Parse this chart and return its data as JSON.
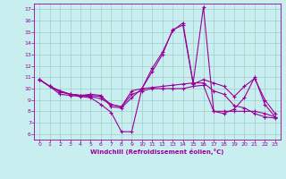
{
  "xlabel": "Windchill (Refroidissement éolien,°C)",
  "bg_color": "#c8eef0",
  "line_color": "#990099",
  "grid_color": "#a0ccc8",
  "ylim": [
    5.5,
    17.5
  ],
  "xlim": [
    -0.5,
    23.5
  ],
  "yticks": [
    6,
    7,
    8,
    9,
    10,
    11,
    12,
    13,
    14,
    15,
    16,
    17
  ],
  "xticks": [
    0,
    1,
    2,
    3,
    4,
    5,
    6,
    7,
    8,
    9,
    10,
    11,
    12,
    13,
    14,
    15,
    16,
    17,
    18,
    19,
    20,
    21,
    22,
    23
  ],
  "series": [
    [
      10.8,
      10.2,
      9.5,
      9.4,
      9.3,
      9.2,
      8.6,
      7.9,
      6.2,
      6.2,
      10.0,
      11.8,
      13.2,
      15.1,
      15.8,
      10.5,
      17.2,
      8.0,
      7.8,
      8.2,
      9.2,
      11.0,
      8.6,
      7.5
    ],
    [
      10.8,
      10.2,
      9.7,
      9.5,
      9.4,
      9.5,
      9.4,
      8.4,
      8.3,
      9.2,
      10.0,
      11.5,
      13.0,
      15.2,
      15.6,
      10.4,
      10.8,
      10.5,
      10.2,
      9.3,
      10.2,
      10.9,
      9.0,
      7.8
    ],
    [
      10.8,
      10.2,
      9.8,
      9.5,
      9.4,
      9.4,
      9.3,
      8.6,
      8.4,
      9.8,
      10.0,
      10.1,
      10.2,
      10.3,
      10.4,
      10.5,
      10.5,
      9.8,
      9.5,
      8.5,
      8.3,
      7.8,
      7.5,
      7.4
    ],
    [
      10.8,
      10.2,
      9.8,
      9.5,
      9.4,
      9.3,
      9.1,
      8.6,
      8.4,
      9.5,
      9.8,
      10.0,
      10.0,
      10.0,
      10.0,
      10.2,
      10.3,
      8.0,
      8.0,
      8.0,
      8.0,
      8.0,
      7.8,
      7.5
    ]
  ]
}
